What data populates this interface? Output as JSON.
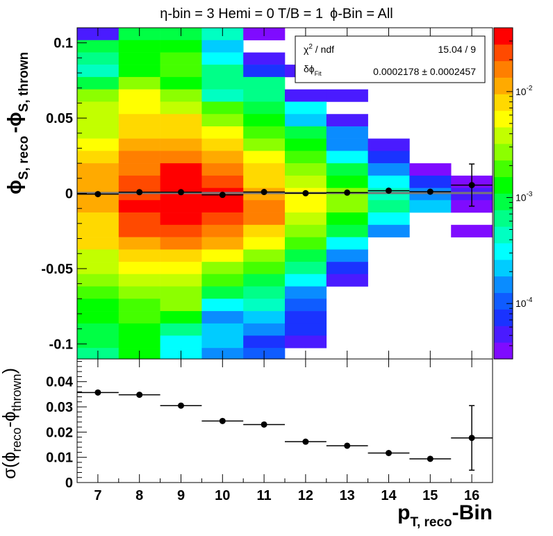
{
  "title": {
    "eta_part": "η-bin = 3 Hemi = 0 T/B = 1",
    "phi_part": "ϕ-Bin = All"
  },
  "stats_box": {
    "row1_label": "χ",
    "row1_sup": "2",
    "row1_rest": " / ndf",
    "row1_value": "15.04 / 9",
    "row2_label": "δϕ",
    "row2_sub": "Fit",
    "row2_value": "0.0002178 ± 0.0002457"
  },
  "top_ylabel": {
    "phi1": "ϕ",
    "sub1": "S, reco",
    "dash": "-ϕ",
    "sub2": "S, thrown"
  },
  "bottom_ylabel": {
    "sigma": "σ(ϕ",
    "sub1": "reco",
    "dash": "-ϕ",
    "sub2": "thrown",
    "close": ")"
  },
  "xlabel": {
    "p": "p",
    "sub": "T, reco",
    "rest": "-Bin"
  },
  "colors": {
    "palette": [
      "#7f0bff",
      "#4a1bff",
      "#1a33ff",
      "#0f5cff",
      "#0a8cff",
      "#00ccff",
      "#00ffff",
      "#00ffc2",
      "#00ff88",
      "#00ff44",
      "#00ff00",
      "#44ff00",
      "#8cff00",
      "#c2ff00",
      "#ffff00",
      "#ffd900",
      "#ffaa00",
      "#ff7f00",
      "#ff4a00",
      "#ff0000"
    ],
    "fit_line": "#777777",
    "markers": "#000000"
  },
  "chart_data": [
    {
      "type": "heatmap",
      "title": "η-bin = 3 Hemi = 0 T/B = 1  ϕ-Bin = All",
      "xlabel": "",
      "ylabel": "ϕS, reco -ϕS, thrown",
      "xlim": [
        6.5,
        16.5
      ],
      "ylim": [
        -0.11,
        0.11
      ],
      "yticks": [
        -0.1,
        -0.05,
        0,
        0.05,
        0.1
      ],
      "ytick_labels": [
        "-0.1",
        "-0.05",
        "0",
        "0.05",
        "0.1"
      ],
      "x_bins": [
        7,
        8,
        9,
        10,
        11,
        12,
        13,
        14,
        15,
        16
      ],
      "y_bin_edges_top_to_bottom": [
        0.11,
        0.1018,
        0.0936,
        0.0855,
        0.0773,
        0.0691,
        0.0609,
        0.0527,
        0.0445,
        0.0364,
        0.0282,
        0.02,
        0.0118,
        0.0036,
        -0.0045,
        -0.0127,
        -0.0209,
        -0.0291,
        -0.0373,
        -0.0455,
        -0.0536,
        -0.0618,
        -0.07,
        -0.0782,
        -0.0864,
        -0.0945,
        -0.1027,
        -0.11
      ],
      "cell_color_levels_top_to_bottom_rows": [
        [
          1,
          9,
          9,
          7,
          0,
          -1,
          -1,
          -1,
          -1,
          -1
        ],
        [
          9,
          10,
          10,
          5,
          -1,
          -1,
          -1,
          -1,
          -1,
          -1
        ],
        [
          8,
          10,
          11,
          6,
          1,
          -1,
          -1,
          -1,
          -1,
          -1
        ],
        [
          7,
          10,
          11,
          8,
          2,
          1,
          -1,
          -1,
          -1,
          -1
        ],
        [
          9,
          12,
          10,
          8,
          8,
          -1,
          -1,
          -1,
          -1,
          -1
        ],
        [
          12,
          14,
          12,
          7,
          8,
          1,
          1,
          -1,
          -1,
          -1
        ],
        [
          13,
          14,
          13,
          11,
          9,
          6,
          -1,
          -1,
          -1,
          -1
        ],
        [
          13,
          15,
          15,
          12,
          10,
          5,
          1,
          -1,
          -1,
          -1
        ],
        [
          13,
          15,
          15,
          14,
          11,
          9,
          4,
          -1,
          -1,
          -1
        ],
        [
          14,
          16,
          16,
          15,
          12,
          10,
          4,
          1,
          -1,
          -1
        ],
        [
          15,
          17,
          17,
          16,
          14,
          11,
          6,
          2,
          -1,
          -1
        ],
        [
          16,
          17,
          19,
          17,
          15,
          12,
          9,
          4,
          0,
          -1
        ],
        [
          16,
          18,
          19,
          18,
          15,
          13,
          10,
          6,
          2,
          0
        ],
        [
          16,
          18,
          19,
          19,
          16,
          14,
          12,
          7,
          4,
          1
        ],
        [
          16,
          19,
          19,
          19,
          17,
          14,
          12,
          8,
          5,
          0
        ],
        [
          15,
          18,
          19,
          18,
          17,
          13,
          10,
          6,
          -1,
          -1
        ],
        [
          15,
          18,
          18,
          17,
          15,
          12,
          9,
          4,
          -1,
          0
        ],
        [
          15,
          16,
          17,
          16,
          14,
          11,
          6,
          -1,
          -1,
          -1
        ],
        [
          13,
          15,
          15,
          14,
          12,
          9,
          4,
          -1,
          -1,
          -1
        ],
        [
          13,
          14,
          14,
          12,
          11,
          8,
          2,
          -1,
          -1,
          -1
        ],
        [
          12,
          13,
          13,
          11,
          9,
          6,
          1,
          -1,
          -1,
          -1
        ],
        [
          11,
          12,
          12,
          9,
          8,
          4,
          -1,
          -1,
          -1,
          -1
        ],
        [
          10,
          11,
          12,
          6,
          7,
          3,
          -1,
          -1,
          -1,
          -1
        ],
        [
          10,
          11,
          10,
          4,
          5,
          2,
          -1,
          -1,
          -1,
          -1
        ],
        [
          9,
          10,
          8,
          5,
          4,
          2,
          -1,
          -1,
          -1,
          -1
        ],
        [
          9,
          10,
          6,
          5,
          2,
          1,
          -1,
          -1,
          -1,
          -1
        ],
        [
          8,
          10,
          6,
          4,
          3,
          -1,
          -1,
          -1,
          -1,
          -1
        ]
      ],
      "colorbar": {
        "scale": "log",
        "range": [
          3e-05,
          0.04
        ],
        "ticks": [
          0.0001,
          0.001,
          0.01
        ],
        "tick_labels": [
          {
            "base": "10",
            "exp": "-4"
          },
          {
            "base": "10",
            "exp": "-3"
          },
          {
            "base": "10",
            "exp": "-2"
          }
        ]
      },
      "series": [
        {
          "type": "errorbar",
          "x": [
            7,
            8,
            9,
            10,
            11,
            12,
            13,
            14,
            15,
            16
          ],
          "y": [
            -0.0005,
            0.0008,
            0.0008,
            -0.001,
            0.0009,
            0.0001,
            0.0005,
            0.0018,
            0.0011,
            0.0055
          ],
          "yerr": [
            0.0008,
            0.0008,
            0.0008,
            0.0008,
            0.0008,
            0.0008,
            0.0008,
            0.0009,
            0.0009,
            0.014
          ],
          "xerr": 0.5
        },
        {
          "type": "line",
          "x": [
            6.5,
            16.5
          ],
          "y": [
            0.0002178,
            0.0002178
          ]
        }
      ]
    },
    {
      "type": "scatter",
      "xlabel": "pT, reco-Bin",
      "ylabel": "σ(ϕreco-ϕthrown)",
      "xlim": [
        6.5,
        16.5
      ],
      "ylim": [
        0,
        0.049
      ],
      "xticks": [
        7,
        8,
        9,
        10,
        11,
        12,
        13,
        14,
        15,
        16
      ],
      "xtick_labels": [
        "7",
        "8",
        "9",
        "10",
        "11",
        "12",
        "13",
        "14",
        "15",
        "16"
      ],
      "yticks": [
        0,
        0.01,
        0.02,
        0.03,
        0.04
      ],
      "ytick_labels": [
        "0",
        "0.01",
        "0.02",
        "0.03",
        "0.04"
      ],
      "series": [
        {
          "x": [
            7,
            8,
            9,
            10,
            11,
            12,
            13,
            14,
            15,
            16
          ],
          "y": [
            0.0357,
            0.0348,
            0.0305,
            0.0244,
            0.023,
            0.0162,
            0.0146,
            0.0117,
            0.0094,
            0.0177
          ],
          "yerr": [
            0.0009,
            0.0011,
            0.0008,
            0.0007,
            0.0007,
            0.0007,
            0.0006,
            0.0006,
            0.0006,
            0.0128
          ],
          "xerr": 0.5
        }
      ]
    }
  ]
}
